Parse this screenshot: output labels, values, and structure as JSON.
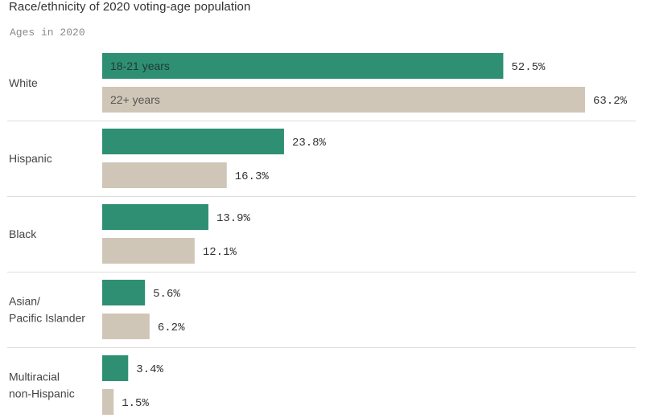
{
  "chart_data": {
    "type": "bar",
    "orientation": "horizontal",
    "title": "Race/ethnicity of 2020 voting-age population",
    "subtitle": "Ages in 2020",
    "categories": [
      [
        "White"
      ],
      [
        "Hispanic"
      ],
      [
        "Black"
      ],
      [
        "Asian/",
        "Pacific Islander"
      ],
      [
        "Multiracial",
        "non-Hispanic"
      ]
    ],
    "series": [
      {
        "name": "18-21 years",
        "color": "#2f8f72",
        "values": [
          52.5,
          23.8,
          13.9,
          5.6,
          3.4
        ],
        "labels": [
          "52.5%",
          "23.8%",
          "13.9%",
          "5.6%",
          "3.4%"
        ]
      },
      {
        "name": "22+ years",
        "color": "#d0c6b7",
        "values": [
          63.2,
          16.3,
          12.1,
          6.2,
          1.5
        ],
        "labels": [
          "63.2%",
          "16.3%",
          "12.1%",
          "6.2%",
          "1.5%"
        ]
      }
    ],
    "legend_placement": "inside-first-bars",
    "xlim": [
      0,
      63.2
    ],
    "grid": false,
    "separators": true
  },
  "colors": {
    "legend_text_on_green": "#1f3a30",
    "legend_text_on_beige": "#555555",
    "separator": "#dddddd"
  }
}
